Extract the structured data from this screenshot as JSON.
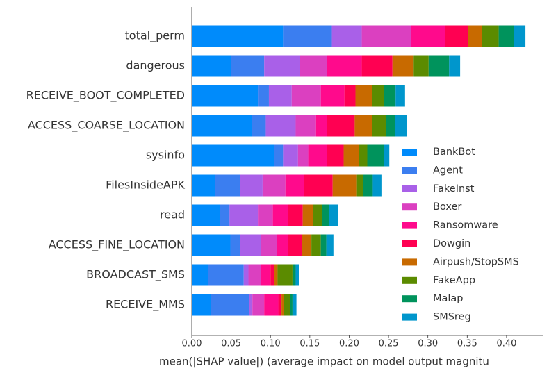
{
  "chart_data": {
    "type": "stacked_barh",
    "xlabel": "mean(|SHAP value|) (average impact on model output magnitu",
    "categories": [
      "total_perm",
      "dangerous",
      "RECEIVE_BOOT_COMPLETED",
      "ACCESS_COARSE_LOCATION",
      "sysinfo",
      "FilesInsideAPK",
      "read",
      "ACCESS_FINE_LOCATION",
      "BROADCAST_SMS",
      "RECEIVE_MMS"
    ],
    "series": [
      {
        "name": "BankBot",
        "color": "#008bfb",
        "values": [
          0.116,
          0.05,
          0.084,
          0.076,
          0.105,
          0.03,
          0.036,
          0.049,
          0.021,
          0.024
        ]
      },
      {
        "name": "Agent",
        "color": "#3b7ef0",
        "values": [
          0.062,
          0.042,
          0.014,
          0.018,
          0.011,
          0.031,
          0.012,
          0.012,
          0.045,
          0.049
        ]
      },
      {
        "name": "FakeInst",
        "color": "#a960e8",
        "values": [
          0.038,
          0.045,
          0.029,
          0.038,
          0.019,
          0.029,
          0.036,
          0.027,
          0.006,
          0.004
        ]
      },
      {
        "name": "Boxer",
        "color": "#db40c0",
        "values": [
          0.063,
          0.035,
          0.037,
          0.025,
          0.013,
          0.029,
          0.019,
          0.02,
          0.016,
          0.015
        ]
      },
      {
        "name": "Ransomware",
        "color": "#ff0a8c",
        "values": [
          0.043,
          0.044,
          0.03,
          0.015,
          0.024,
          0.024,
          0.019,
          0.014,
          0.012,
          0.018
        ]
      },
      {
        "name": "Dowgin",
        "color": "#ff0052",
        "values": [
          0.029,
          0.039,
          0.014,
          0.035,
          0.021,
          0.036,
          0.019,
          0.018,
          0.005,
          0.004
        ]
      },
      {
        "name": "Airpush/StopSMS",
        "color": "#c86a00",
        "values": [
          0.018,
          0.027,
          0.021,
          0.022,
          0.019,
          0.03,
          0.013,
          0.012,
          0.004,
          0.003
        ]
      },
      {
        "name": "FakeApp",
        "color": "#5b8b00",
        "values": [
          0.021,
          0.019,
          0.015,
          0.018,
          0.011,
          0.009,
          0.012,
          0.012,
          0.019,
          0.008
        ]
      },
      {
        "name": "Malap",
        "color": "#00935c",
        "values": [
          0.019,
          0.026,
          0.015,
          0.011,
          0.021,
          0.012,
          0.008,
          0.007,
          0.004,
          0.003
        ]
      },
      {
        "name": "SMSreg",
        "color": "#0096cc",
        "values": [
          0.015,
          0.014,
          0.012,
          0.015,
          0.007,
          0.011,
          0.012,
          0.009,
          0.004,
          0.005
        ]
      }
    ],
    "xlim": [
      0,
      0.446
    ],
    "xticks": [
      {
        "value": 0,
        "label": "0.00"
      },
      {
        "value": 0.05,
        "label": "0.05"
      },
      {
        "value": 0.1,
        "label": "0.10"
      },
      {
        "value": 0.15,
        "label": "0.15"
      },
      {
        "value": 0.2,
        "label": "0.20"
      },
      {
        "value": 0.25,
        "label": "0.25"
      },
      {
        "value": 0.3,
        "label": "0.30"
      },
      {
        "value": 0.35,
        "label": "0.35"
      },
      {
        "value": 0.4,
        "label": "0.40"
      }
    ],
    "legend": "lower right"
  }
}
